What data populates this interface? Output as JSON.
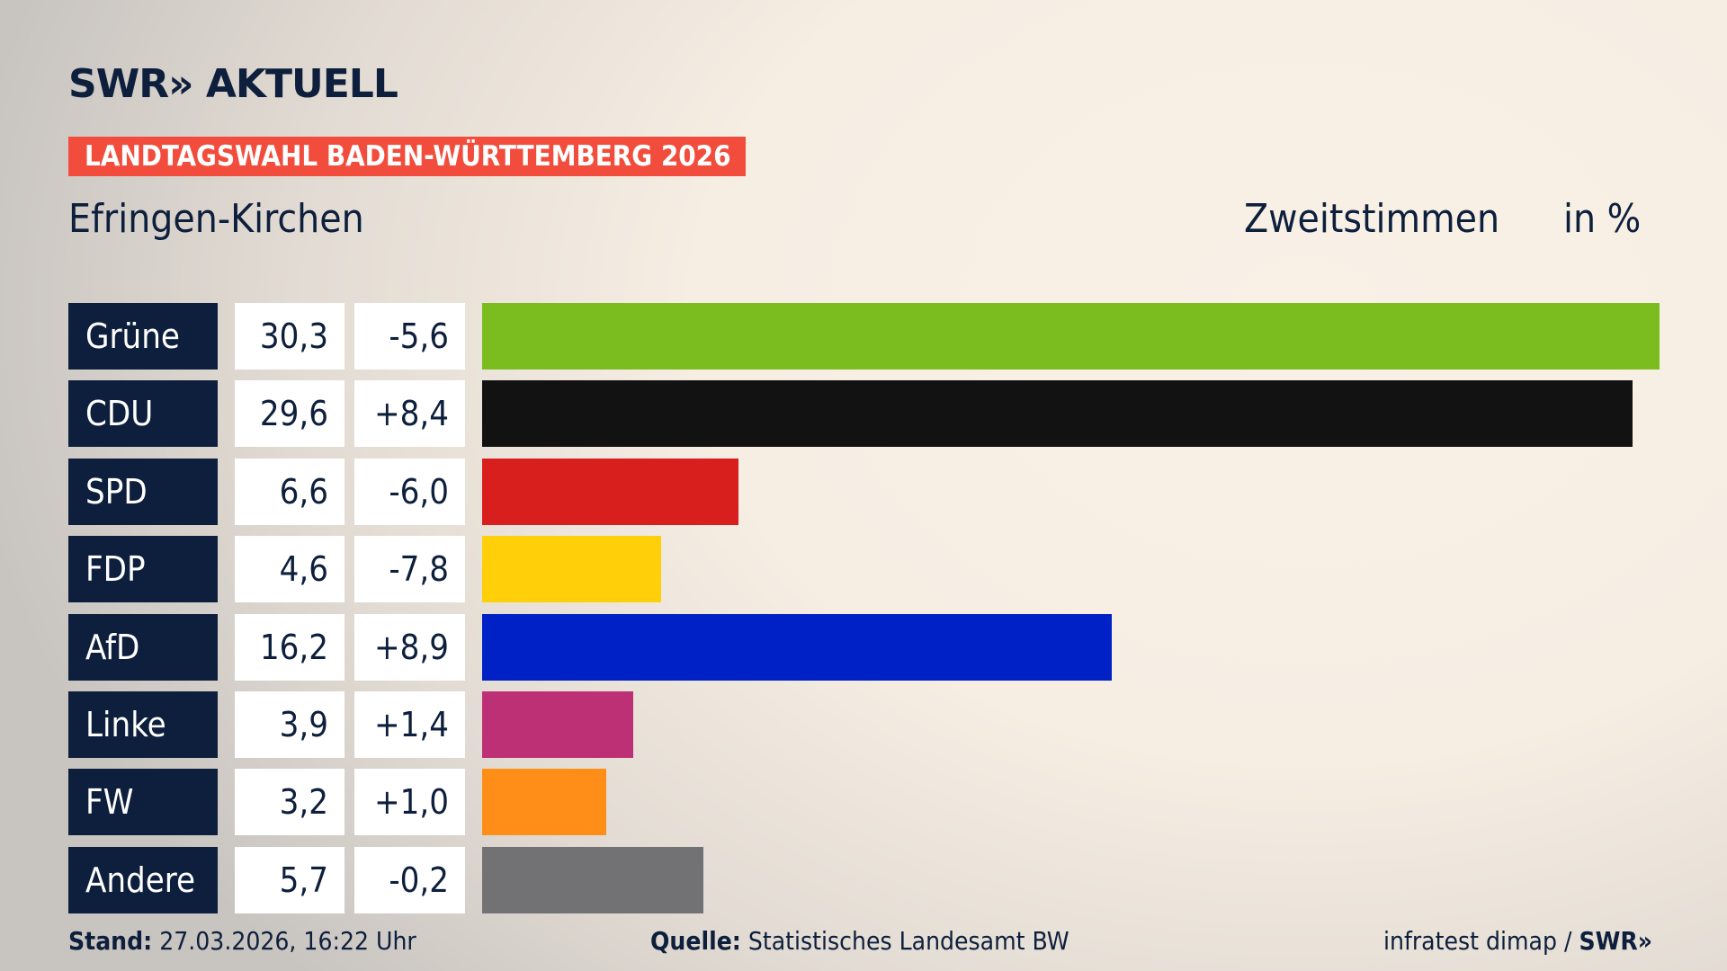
{
  "brand": {
    "logo": "SWR» AKTUELL"
  },
  "banner": "LANDTAGSWAHL BADEN-WÜRTTEMBERG 2026",
  "region": "Efringen-Kirchen",
  "measure": "Zweitstimmen",
  "unit": "in %",
  "chart_data": {
    "type": "bar",
    "orientation": "horizontal",
    "categories": [
      "Grüne",
      "CDU",
      "SPD",
      "FDP",
      "AfD",
      "Linke",
      "FW",
      "Andere"
    ],
    "values": [
      30.3,
      29.6,
      6.6,
      4.6,
      16.2,
      3.9,
      3.2,
      5.7
    ],
    "value_labels": [
      "30,3",
      "29,6",
      "6,6",
      "4,6",
      "16,2",
      "3,9",
      "3,2",
      "5,7"
    ],
    "change_labels": [
      "-5,6",
      "+8,4",
      "-6,0",
      "-7,8",
      "+8,9",
      "+1,4",
      "+1,0",
      "-0,2"
    ],
    "changes": [
      -5.6,
      8.4,
      -6.0,
      -7.8,
      8.9,
      1.4,
      1.0,
      -0.2
    ],
    "colors": [
      "#7bbd1f",
      "#121212",
      "#d81f1e",
      "#ffd00a",
      "#0021c6",
      "#bd3075",
      "#ff8e19",
      "#727274"
    ],
    "grid": false
  },
  "footer": {
    "stand_label": "Stand:",
    "stand_value": "27.03.2026, 16:22 Uhr",
    "source_label": "Quelle:",
    "source_value": "Statistisches Landesamt BW",
    "credit": "infratest dimap /",
    "credit_logo": "SWR»"
  }
}
